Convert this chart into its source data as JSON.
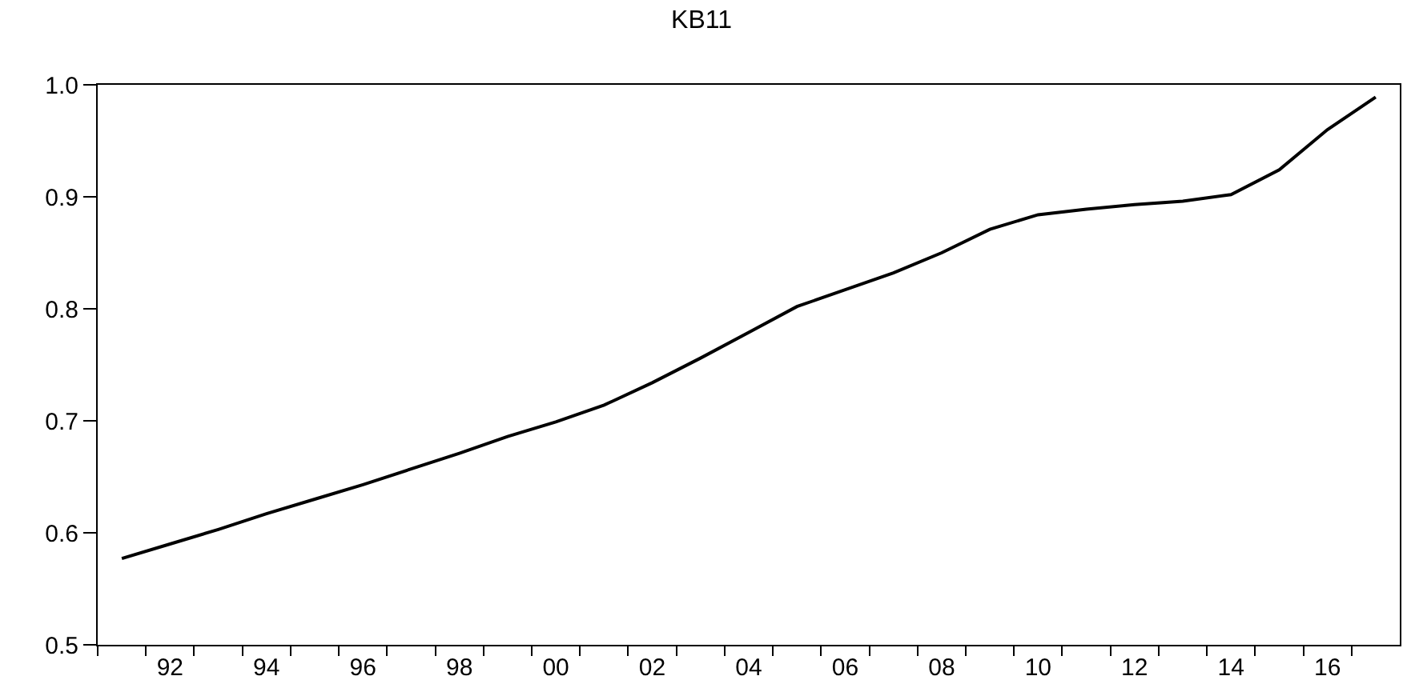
{
  "chart_data": {
    "type": "line",
    "title": "KB11",
    "categories": [
      null,
      "92",
      null,
      "94",
      null,
      "96",
      null,
      "98",
      null,
      "00",
      null,
      "02",
      null,
      "04",
      null,
      "06",
      null,
      "08",
      null,
      "10",
      null,
      "12",
      null,
      "14",
      null,
      "16",
      null
    ],
    "series": [
      {
        "color": "#000000",
        "values": [
          0.577,
          0.59,
          0.603,
          0.617,
          0.63,
          0.643,
          0.657,
          0.671,
          0.686,
          0.699,
          0.714,
          0.734,
          0.756,
          0.779,
          0.802,
          0.817,
          0.832,
          0.85,
          0.871,
          0.884,
          0.889,
          0.893,
          0.896,
          0.902,
          0.924,
          0.96,
          0.989
        ]
      }
    ],
    "ylim": [
      0.5,
      1.0
    ],
    "yticks": [
      0.5,
      0.6,
      0.7,
      0.8,
      0.9,
      {
        "value": 1.0,
        "label": "1.0"
      }
    ],
    "legend": false,
    "marker": "none",
    "line_style": "solid"
  }
}
